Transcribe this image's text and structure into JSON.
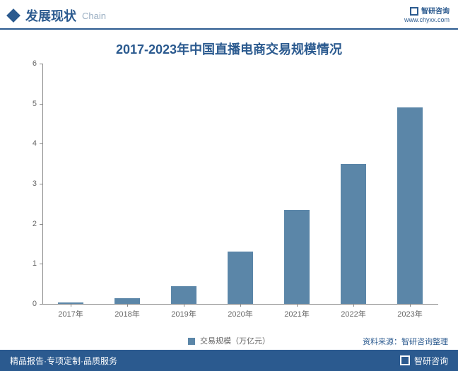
{
  "header": {
    "title": "发展现状",
    "subtitle": "Chain",
    "brand": "智研咨询",
    "url": "www.chyxx.com"
  },
  "chart": {
    "type": "bar",
    "title": "2017-2023年中国直播电商交易规模情况",
    "categories": [
      "2017年",
      "2018年",
      "2019年",
      "2020年",
      "2021年",
      "2022年",
      "2023年"
    ],
    "values": [
      0.03,
      0.15,
      0.45,
      1.3,
      2.35,
      3.5,
      4.9
    ],
    "bar_color": "#5b86a8",
    "ylim": [
      0,
      6
    ],
    "ytick_step": 1,
    "legend_label": "交易规模（万亿元）",
    "title_color": "#2b5a8f",
    "title_fontsize": 18,
    "axis_color": "#888888",
    "label_color": "#666666",
    "label_fontsize": 11,
    "background_color": "#ffffff",
    "bar_width_ratio": 0.45
  },
  "footer": {
    "left": "精品报告·专项定制·品质服务",
    "brand": "智研咨询",
    "source": "资料来源：智研咨询整理"
  },
  "colors": {
    "primary": "#2b5a8f",
    "bar": "#5b86a8",
    "white": "#ffffff"
  }
}
